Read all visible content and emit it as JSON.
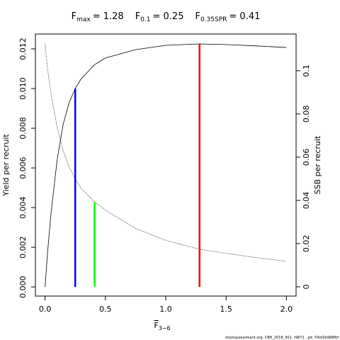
{
  "chart_data": {
    "type": "line",
    "title": [
      {
        "text": "F",
        "sub": "max",
        "value": "= 1.28"
      },
      {
        "text": "F",
        "sub": "0.1",
        "value": "= 0.25"
      },
      {
        "text": "F",
        "sub": "0.35SPR",
        "value": "= 0.41"
      }
    ],
    "x_label": {
      "text": "F",
      "sub": "3−6"
    },
    "y_label": "Yield per recruit",
    "y2_label": "SSB per recruit",
    "footnote": "stockassessment.org, CBH_2018_001, r9672 , git: 53ef2b988fbf",
    "x": [
      0,
      0.02,
      0.05,
      0.1,
      0.15,
      0.2,
      0.25,
      0.3,
      0.41,
      0.5,
      0.75,
      1.0,
      1.28,
      1.5,
      1.75,
      2.0
    ],
    "series": [
      {
        "name": "Yield per recruit",
        "color": "#000000",
        "dash": "solid",
        "axis": "y",
        "values": [
          0,
          0.0017,
          0.00375,
          0.0064,
          0.0082,
          0.0093,
          0.01,
          0.0105,
          0.0112,
          0.01154,
          0.01196,
          0.01218,
          0.01225,
          0.01222,
          0.01215,
          0.01207
        ]
      },
      {
        "name": "SSB per recruit",
        "color": "#000000",
        "dash": "dotted",
        "axis": "y2",
        "values": [
          0.1125,
          0.101,
          0.089,
          0.0738,
          0.063,
          0.0555,
          0.0498,
          0.0455,
          0.0393,
          0.0355,
          0.027,
          0.0215,
          0.0174,
          0.0155,
          0.0135,
          0.0118
        ]
      }
    ],
    "reference_lines": [
      {
        "x": 0.25,
        "y": 0.01,
        "axis": "y",
        "color": "#0000ff"
      },
      {
        "x": 0.41,
        "y": 0.0393,
        "axis": "y2",
        "color": "#00ff00"
      },
      {
        "x": 1.28,
        "y": 0.01225,
        "axis": "y",
        "color": "#ff0000"
      }
    ],
    "xlim": [
      -0.08,
      2.08
    ],
    "xticks": [
      {
        "value": 0,
        "label": "0.0"
      },
      0.5,
      {
        "value": 1,
        "label": "1.0"
      },
      1.5,
      {
        "value": 2,
        "label": "2.0"
      }
    ],
    "ylim": [
      -0.00046,
      0.01275
    ],
    "yticks": [
      {
        "value": 0,
        "label": "0.000"
      },
      {
        "value": 0.002,
        "label": "0.002"
      },
      {
        "value": 0.004,
        "label": "0.004"
      },
      {
        "value": 0.006,
        "label": "0.006"
      },
      {
        "value": 0.008,
        "label": "0.008"
      },
      {
        "value": 0.01,
        "label": "0.010"
      },
      {
        "value": 0.012,
        "label": "0.012"
      }
    ],
    "y2lim": [
      -0.0043,
      0.117
    ],
    "y2ticks": [
      0,
      0.02,
      0.04,
      0.06,
      0.08,
      0.1
    ]
  }
}
